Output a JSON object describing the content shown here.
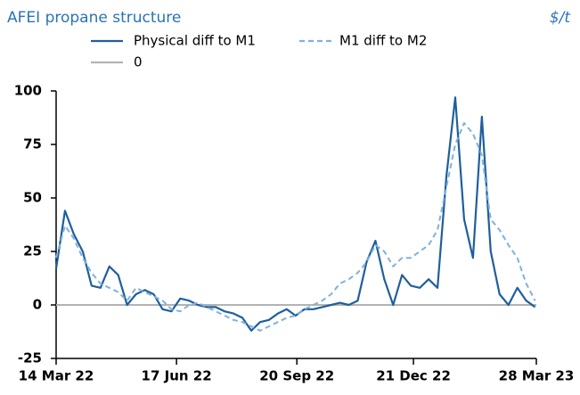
{
  "chart_data": {
    "type": "line",
    "title": "AFEI propane structure",
    "unit": "$/t",
    "x": [
      "2022-03-14",
      "2022-03-21",
      "2022-03-28",
      "2022-04-04",
      "2022-04-11",
      "2022-04-18",
      "2022-04-25",
      "2022-05-02",
      "2022-05-09",
      "2022-05-16",
      "2022-05-23",
      "2022-05-30",
      "2022-06-06",
      "2022-06-13",
      "2022-06-20",
      "2022-06-27",
      "2022-07-04",
      "2022-07-11",
      "2022-07-18",
      "2022-07-25",
      "2022-08-01",
      "2022-08-08",
      "2022-08-15",
      "2022-08-22",
      "2022-08-29",
      "2022-09-05",
      "2022-09-12",
      "2022-09-19",
      "2022-09-26",
      "2022-10-03",
      "2022-10-10",
      "2022-10-17",
      "2022-10-24",
      "2022-10-31",
      "2022-11-07",
      "2022-11-14",
      "2022-11-21",
      "2022-11-28",
      "2022-12-05",
      "2022-12-12",
      "2022-12-19",
      "2022-12-26",
      "2023-01-02",
      "2023-01-09",
      "2023-01-16",
      "2023-01-23",
      "2023-01-30",
      "2023-02-06",
      "2023-02-13",
      "2023-02-20",
      "2023-02-27",
      "2023-03-06",
      "2023-03-13",
      "2023-03-20",
      "2023-03-27"
    ],
    "series": [
      {
        "name": "Physical diff to M1",
        "color": "#1f5f9e",
        "dash": false,
        "values": [
          17,
          44,
          33,
          25,
          9,
          8,
          18,
          14,
          0,
          5,
          7,
          5,
          -2,
          -3,
          3,
          2,
          0,
          -1,
          -1,
          -3,
          -4,
          -6,
          -12,
          -8,
          -7,
          -4,
          -2,
          -5,
          -2,
          -2,
          -1,
          0,
          1,
          0,
          2,
          20,
          30,
          12,
          0,
          14,
          9,
          8,
          12,
          8,
          60,
          97,
          40,
          22,
          88,
          25,
          5,
          0,
          8,
          2,
          -1
        ]
      },
      {
        "name": "M1 diff to M2",
        "color": "#7fb1dd",
        "dash": true,
        "values": [
          22,
          37,
          31,
          22,
          15,
          10,
          8,
          6,
          2,
          8,
          6,
          4,
          2,
          -2,
          -3,
          0,
          1,
          -1,
          -3,
          -5,
          -7,
          -8,
          -10,
          -12,
          -10,
          -8,
          -6,
          -5,
          -2,
          0,
          2,
          5,
          10,
          12,
          15,
          20,
          28,
          25,
          18,
          22,
          22,
          25,
          28,
          35,
          55,
          75,
          85,
          80,
          70,
          40,
          35,
          28,
          22,
          10,
          2
        ]
      }
    ],
    "reference_lines": [
      {
        "name": "0",
        "value": 0,
        "color": "#b3b3b3"
      }
    ],
    "xlim": [
      "2022-03-14",
      "2023-03-28"
    ],
    "xticks": [
      {
        "value": "2022-03-14",
        "label": "14 Mar 22"
      },
      {
        "value": "2022-06-17",
        "label": "17 Jun 22"
      },
      {
        "value": "2022-09-20",
        "label": "20 Sep 22"
      },
      {
        "value": "2022-12-21",
        "label": "21 Dec 22"
      },
      {
        "value": "2023-03-28",
        "label": "28 Mar 23"
      }
    ],
    "ylim": [
      -25,
      100
    ],
    "yticks": [
      -25,
      0,
      25,
      50,
      75,
      100
    ]
  }
}
